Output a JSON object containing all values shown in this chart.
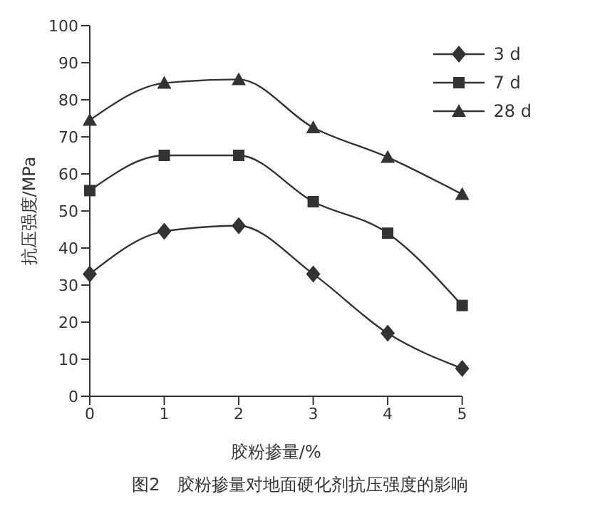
{
  "chart_data": {
    "type": "line",
    "title": "图2　胶粉掺量对地面硬化剂抗压强度的影响",
    "xlabel": "胶粉掺量/%",
    "ylabel": "抗压强度/MPa",
    "x": [
      0,
      1,
      2,
      3,
      4,
      5
    ],
    "xlim": [
      0,
      5
    ],
    "xticks": [
      0,
      1,
      2,
      3,
      4,
      5
    ],
    "ylim": [
      0,
      100
    ],
    "yticks": [
      0,
      10,
      20,
      30,
      40,
      50,
      60,
      70,
      80,
      90,
      100
    ],
    "legend": "top right",
    "series": [
      {
        "name": "3 d",
        "color": "#333333",
        "marker": "diamond",
        "values": [
          33,
          44.5,
          46,
          33,
          17,
          7.5
        ]
      },
      {
        "name": "7 d",
        "color": "#333333",
        "marker": "square",
        "values": [
          55.5,
          65,
          65,
          52.5,
          44,
          24.5
        ]
      },
      {
        "name": "28 d",
        "color": "#333333",
        "marker": "triangle",
        "values": [
          74.5,
          84.5,
          85.5,
          72.5,
          64.5,
          54.5
        ]
      }
    ]
  }
}
